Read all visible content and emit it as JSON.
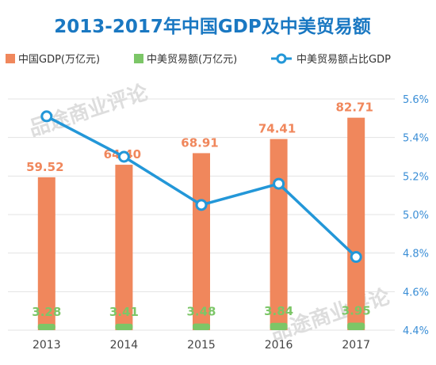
{
  "colors": {
    "title": "#1a78c2",
    "gdp_bar": "#f0875c",
    "trade_bar": "#7cc667",
    "ratio_line": "#2397d8",
    "grid": "#e3e3e3",
    "watermark": "#cfcfcf"
  },
  "watermark_text": "品途商业评论",
  "chart_data": {
    "type": "bar",
    "title": "2013-2017年中国GDP及中美贸易额",
    "categories": [
      "2013",
      "2014",
      "2015",
      "2016",
      "2017"
    ],
    "series": [
      {
        "name": "中国GDP(万亿元)",
        "kind": "bar",
        "values": [
          59.52,
          64.4,
          68.91,
          74.41,
          82.71
        ],
        "labels": [
          "59.52",
          "64.40",
          "68.91",
          "74.41",
          "82.71"
        ]
      },
      {
        "name": "中美贸易额(万亿元)",
        "kind": "bar",
        "values": [
          3.28,
          3.41,
          3.48,
          3.84,
          3.95
        ],
        "labels": [
          "3.28",
          "3.41",
          "3.48",
          "3.84",
          "3.95"
        ]
      },
      {
        "name": "中美贸易额占比GDP",
        "kind": "line",
        "axis": "right",
        "unit": "%",
        "values": [
          5.51,
          5.3,
          5.05,
          5.16,
          4.78
        ]
      }
    ],
    "y2_ticks": [
      "5.6%",
      "5.4%",
      "5.2%",
      "5.0%",
      "4.8%",
      "4.6%",
      "4.4%"
    ],
    "y2lim": [
      4.4,
      5.6
    ],
    "grid": true,
    "legend": "top"
  }
}
